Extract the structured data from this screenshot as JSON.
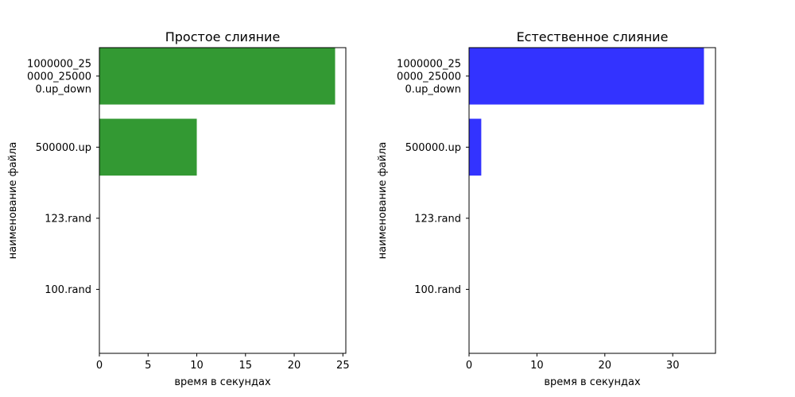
{
  "chart_data": [
    {
      "type": "bar",
      "orientation": "horizontal",
      "title": "Простое слияние",
      "xlabel": "время в секундах",
      "ylabel": "наименование файла",
      "categories": [
        "100.rand",
        "123.rand",
        "500000.up",
        "1000000_250000_250000.up_down"
      ],
      "category_display": [
        [
          "100.rand"
        ],
        [
          "123.rand"
        ],
        [
          "500000.up"
        ],
        [
          "1000000_25",
          "0000_25000",
          "0.up_down"
        ]
      ],
      "values": [
        0.001,
        0.001,
        10.0,
        24.2
      ],
      "xlim": [
        0,
        25.3
      ],
      "xticks": [
        0,
        5,
        10,
        15,
        20,
        25
      ],
      "color": "#339933",
      "grid": false
    },
    {
      "type": "bar",
      "orientation": "horizontal",
      "title": "Естественное слияние",
      "xlabel": "время в секундах",
      "ylabel": "наименование файла",
      "categories": [
        "100.rand",
        "123.rand",
        "500000.up",
        "1000000_250000_250000.up_down"
      ],
      "category_display": [
        [
          "100.rand"
        ],
        [
          "123.rand"
        ],
        [
          "500000.up"
        ],
        [
          "1000000_25",
          "0000_25000",
          "0.up_down"
        ]
      ],
      "values": [
        0.001,
        0.001,
        1.8,
        34.6
      ],
      "xlim": [
        0,
        36.3
      ],
      "xticks": [
        0,
        10,
        20,
        30
      ],
      "color": "#3333ff",
      "grid": false
    }
  ]
}
